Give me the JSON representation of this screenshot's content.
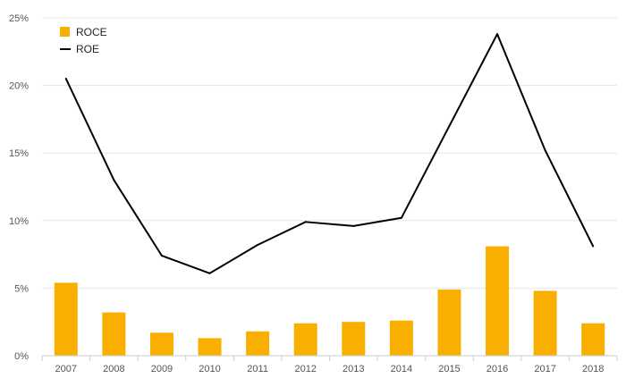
{
  "chart_data": {
    "type": "bar",
    "title": "",
    "xlabel": "",
    "ylabel": "",
    "categories": [
      "2007",
      "2008",
      "2009",
      "2010",
      "2011",
      "2012",
      "2013",
      "2014",
      "2015",
      "2016",
      "2017",
      "2018"
    ],
    "ylim": [
      0,
      25
    ],
    "y_ticks": [
      {
        "value": 0,
        "label": "0%"
      },
      {
        "value": 5,
        "label": "5%"
      },
      {
        "value": 10,
        "label": "10%"
      },
      {
        "value": 15,
        "label": "15%"
      },
      {
        "value": 20,
        "label": "20%"
      },
      {
        "value": 25,
        "label": "25%"
      }
    ],
    "grid": "horizontal",
    "legend_position": "top-left",
    "series": [
      {
        "name": "ROCE",
        "type": "bar",
        "color": "#F9AF00",
        "values": [
          5.4,
          3.2,
          1.7,
          1.3,
          1.8,
          2.4,
          2.5,
          2.6,
          4.9,
          8.1,
          4.8,
          2.4
        ]
      },
      {
        "name": "ROE",
        "type": "line",
        "color": "#000000",
        "values": [
          20.5,
          13.0,
          7.4,
          6.1,
          8.2,
          9.9,
          9.6,
          10.2,
          17.0,
          23.8,
          15.2,
          8.1
        ]
      }
    ]
  }
}
